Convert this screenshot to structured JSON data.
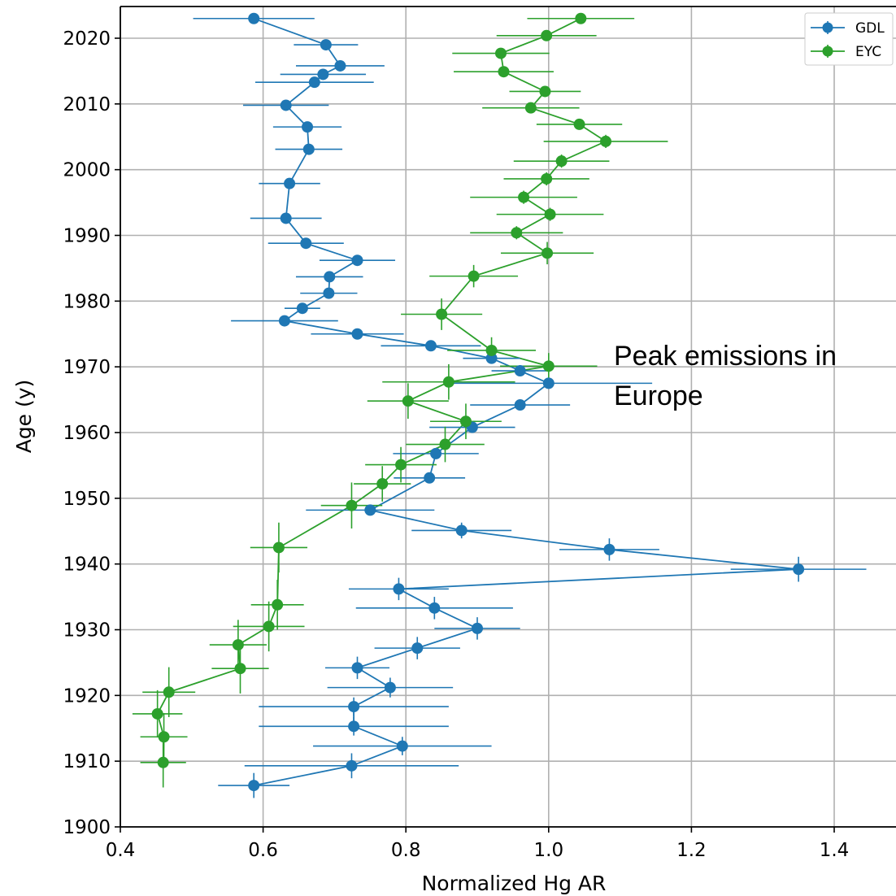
{
  "chart_data": {
    "type": "scatter",
    "xlabel": "Normalized Hg AR",
    "ylabel": "Age (y)",
    "xlim": [
      0.4,
      1.45
    ],
    "ylim": [
      1900,
      2025
    ],
    "xticks": [
      "0.4",
      "0.6",
      "0.8",
      "1.0",
      "1.2",
      "1.4"
    ],
    "yticks": [
      "1900",
      "1910",
      "1920",
      "1930",
      "1940",
      "1950",
      "1960",
      "1970",
      "1980",
      "1990",
      "2000",
      "2010",
      "2020"
    ],
    "grid": true,
    "legend_position": "top-right",
    "annotation": "Peak emissions in Europe",
    "series": [
      {
        "name": "GDL",
        "color": "#1f77b4",
        "points": [
          {
            "x": 0.587,
            "y": 2023.0,
            "xerr": 0.085,
            "yerr": 0.4
          },
          {
            "x": 0.688,
            "y": 2019.0,
            "xerr": 0.045,
            "yerr": 0.8
          },
          {
            "x": 0.708,
            "y": 2015.8,
            "xerr": 0.062,
            "yerr": 0.8
          },
          {
            "x": 0.684,
            "y": 2014.5,
            "xerr": 0.06,
            "yerr": 0.8
          },
          {
            "x": 0.672,
            "y": 2013.3,
            "xerr": 0.083,
            "yerr": 0.8
          },
          {
            "x": 0.632,
            "y": 2009.8,
            "xerr": 0.06,
            "yerr": 0.8
          },
          {
            "x": 0.662,
            "y": 2006.5,
            "xerr": 0.048,
            "yerr": 0.8
          },
          {
            "x": 0.664,
            "y": 2003.1,
            "xerr": 0.047,
            "yerr": 0.8
          },
          {
            "x": 0.637,
            "y": 1997.9,
            "xerr": 0.043,
            "yerr": 0.8
          },
          {
            "x": 0.632,
            "y": 1992.6,
            "xerr": 0.05,
            "yerr": 0.8
          },
          {
            "x": 0.66,
            "y": 1988.8,
            "xerr": 0.053,
            "yerr": 0.8
          },
          {
            "x": 0.732,
            "y": 1986.2,
            "xerr": 0.053,
            "yerr": 0.8
          },
          {
            "x": 0.693,
            "y": 1983.7,
            "xerr": 0.047,
            "yerr": 0.8
          },
          {
            "x": 0.692,
            "y": 1981.2,
            "xerr": 0.04,
            "yerr": 0.8
          },
          {
            "x": 0.655,
            "y": 1978.9,
            "xerr": 0.025,
            "yerr": 0.8
          },
          {
            "x": 0.63,
            "y": 1977.0,
            "xerr": 0.075,
            "yerr": 0.8
          },
          {
            "x": 0.732,
            "y": 1975.0,
            "xerr": 0.065,
            "yerr": 0.8
          },
          {
            "x": 0.835,
            "y": 1973.2,
            "xerr": 0.07,
            "yerr": 0.8
          },
          {
            "x": 0.92,
            "y": 1971.3,
            "xerr": 0.04,
            "yerr": 0.8
          },
          {
            "x": 0.96,
            "y": 1969.4,
            "xerr": 0.04,
            "yerr": 0.8
          },
          {
            "x": 1.0,
            "y": 1967.5,
            "xerr": 0.145,
            "yerr": 0.8
          },
          {
            "x": 0.96,
            "y": 1964.2,
            "xerr": 0.07,
            "yerr": 0.8
          },
          {
            "x": 0.893,
            "y": 1960.8,
            "xerr": 0.06,
            "yerr": 0.8
          },
          {
            "x": 0.842,
            "y": 1956.8,
            "xerr": 0.06,
            "yerr": 0.8
          },
          {
            "x": 0.833,
            "y": 1953.1,
            "xerr": 0.05,
            "yerr": 0.8
          },
          {
            "x": 0.75,
            "y": 1948.2,
            "xerr": 0.09,
            "yerr": 0.8
          },
          {
            "x": 0.878,
            "y": 1945.1,
            "xerr": 0.07,
            "yerr": 1.2
          },
          {
            "x": 1.085,
            "y": 1942.2,
            "xerr": 0.07,
            "yerr": 1.7
          },
          {
            "x": 1.35,
            "y": 1939.2,
            "xerr": 0.095,
            "yerr": 1.9
          },
          {
            "x": 0.79,
            "y": 1936.2,
            "xerr": 0.07,
            "yerr": 1.7
          },
          {
            "x": 0.84,
            "y": 1933.3,
            "xerr": 0.11,
            "yerr": 1.7
          },
          {
            "x": 0.9,
            "y": 1930.2,
            "xerr": 0.06,
            "yerr": 1.7
          },
          {
            "x": 0.816,
            "y": 1927.2,
            "xerr": 0.06,
            "yerr": 1.7
          },
          {
            "x": 0.732,
            "y": 1924.2,
            "xerr": 0.045,
            "yerr": 1.7
          },
          {
            "x": 0.778,
            "y": 1921.2,
            "xerr": 0.088,
            "yerr": 1.5
          },
          {
            "x": 0.727,
            "y": 1918.3,
            "xerr": 0.133,
            "yerr": 1.4
          },
          {
            "x": 0.727,
            "y": 1915.3,
            "xerr": 0.133,
            "yerr": 1.4
          },
          {
            "x": 0.795,
            "y": 1912.3,
            "xerr": 0.125,
            "yerr": 1.4
          },
          {
            "x": 0.724,
            "y": 1909.3,
            "xerr": 0.15,
            "yerr": 1.9
          },
          {
            "x": 0.587,
            "y": 1906.3,
            "xerr": 0.05,
            "yerr": 1.9
          }
        ]
      },
      {
        "name": "EYC",
        "color": "#2ca02c",
        "points": [
          {
            "x": 1.045,
            "y": 2023.0,
            "xerr": 0.075,
            "yerr": 0.4
          },
          {
            "x": 0.997,
            "y": 2020.4,
            "xerr": 0.07,
            "yerr": 0.8
          },
          {
            "x": 0.933,
            "y": 2017.7,
            "xerr": 0.068,
            "yerr": 0.8
          },
          {
            "x": 0.937,
            "y": 2014.9,
            "xerr": 0.07,
            "yerr": 0.8
          },
          {
            "x": 0.995,
            "y": 2011.9,
            "xerr": 0.05,
            "yerr": 0.8
          },
          {
            "x": 0.975,
            "y": 2009.4,
            "xerr": 0.068,
            "yerr": 0.8
          },
          {
            "x": 1.043,
            "y": 2006.9,
            "xerr": 0.06,
            "yerr": 0.8
          },
          {
            "x": 1.08,
            "y": 2004.3,
            "xerr": 0.087,
            "yerr": 1.0
          },
          {
            "x": 1.018,
            "y": 2001.3,
            "xerr": 0.067,
            "yerr": 1.0
          },
          {
            "x": 0.997,
            "y": 1998.6,
            "xerr": 0.06,
            "yerr": 1.0
          },
          {
            "x": 0.965,
            "y": 1995.8,
            "xerr": 0.075,
            "yerr": 1.0
          },
          {
            "x": 1.002,
            "y": 1993.2,
            "xerr": 0.075,
            "yerr": 1.0
          },
          {
            "x": 0.955,
            "y": 1990.4,
            "xerr": 0.065,
            "yerr": 1.0
          },
          {
            "x": 0.998,
            "y": 1987.3,
            "xerr": 0.065,
            "yerr": 1.7
          },
          {
            "x": 0.895,
            "y": 1983.8,
            "xerr": 0.062,
            "yerr": 1.7
          },
          {
            "x": 0.85,
            "y": 1978.0,
            "xerr": 0.057,
            "yerr": 2.4
          },
          {
            "x": 0.92,
            "y": 1972.5,
            "xerr": 0.062,
            "yerr": 2.0
          },
          {
            "x": 1.0,
            "y": 1970.1,
            "xerr": 0.068,
            "yerr": 2.0
          },
          {
            "x": 0.86,
            "y": 1967.7,
            "xerr": 0.093,
            "yerr": 2.7
          },
          {
            "x": 0.803,
            "y": 1964.8,
            "xerr": 0.057,
            "yerr": 2.7
          },
          {
            "x": 0.884,
            "y": 1961.7,
            "xerr": 0.05,
            "yerr": 2.7
          },
          {
            "x": 0.855,
            "y": 1958.2,
            "xerr": 0.055,
            "yerr": 2.7
          },
          {
            "x": 0.793,
            "y": 1955.1,
            "xerr": 0.05,
            "yerr": 2.7
          },
          {
            "x": 0.767,
            "y": 1952.2,
            "xerr": 0.04,
            "yerr": 2.7
          },
          {
            "x": 0.724,
            "y": 1948.9,
            "xerr": 0.043,
            "yerr": 3.5
          },
          {
            "x": 0.622,
            "y": 1942.5,
            "xerr": 0.04,
            "yerr": 3.8
          },
          {
            "x": 0.62,
            "y": 1933.8,
            "xerr": 0.037,
            "yerr": 3.8
          },
          {
            "x": 0.608,
            "y": 1930.5,
            "xerr": 0.05,
            "yerr": 3.8
          },
          {
            "x": 0.565,
            "y": 1927.7,
            "xerr": 0.04,
            "yerr": 3.8
          },
          {
            "x": 0.568,
            "y": 1924.1,
            "xerr": 0.04,
            "yerr": 3.8
          },
          {
            "x": 0.468,
            "y": 1920.5,
            "xerr": 0.037,
            "yerr": 3.8
          },
          {
            "x": 0.452,
            "y": 1917.2,
            "xerr": 0.035,
            "yerr": 3.6
          },
          {
            "x": 0.461,
            "y": 1913.7,
            "xerr": 0.033,
            "yerr": 3.6
          },
          {
            "x": 0.46,
            "y": 1909.8,
            "xerr": 0.032,
            "yerr": 3.8
          }
        ]
      }
    ]
  }
}
